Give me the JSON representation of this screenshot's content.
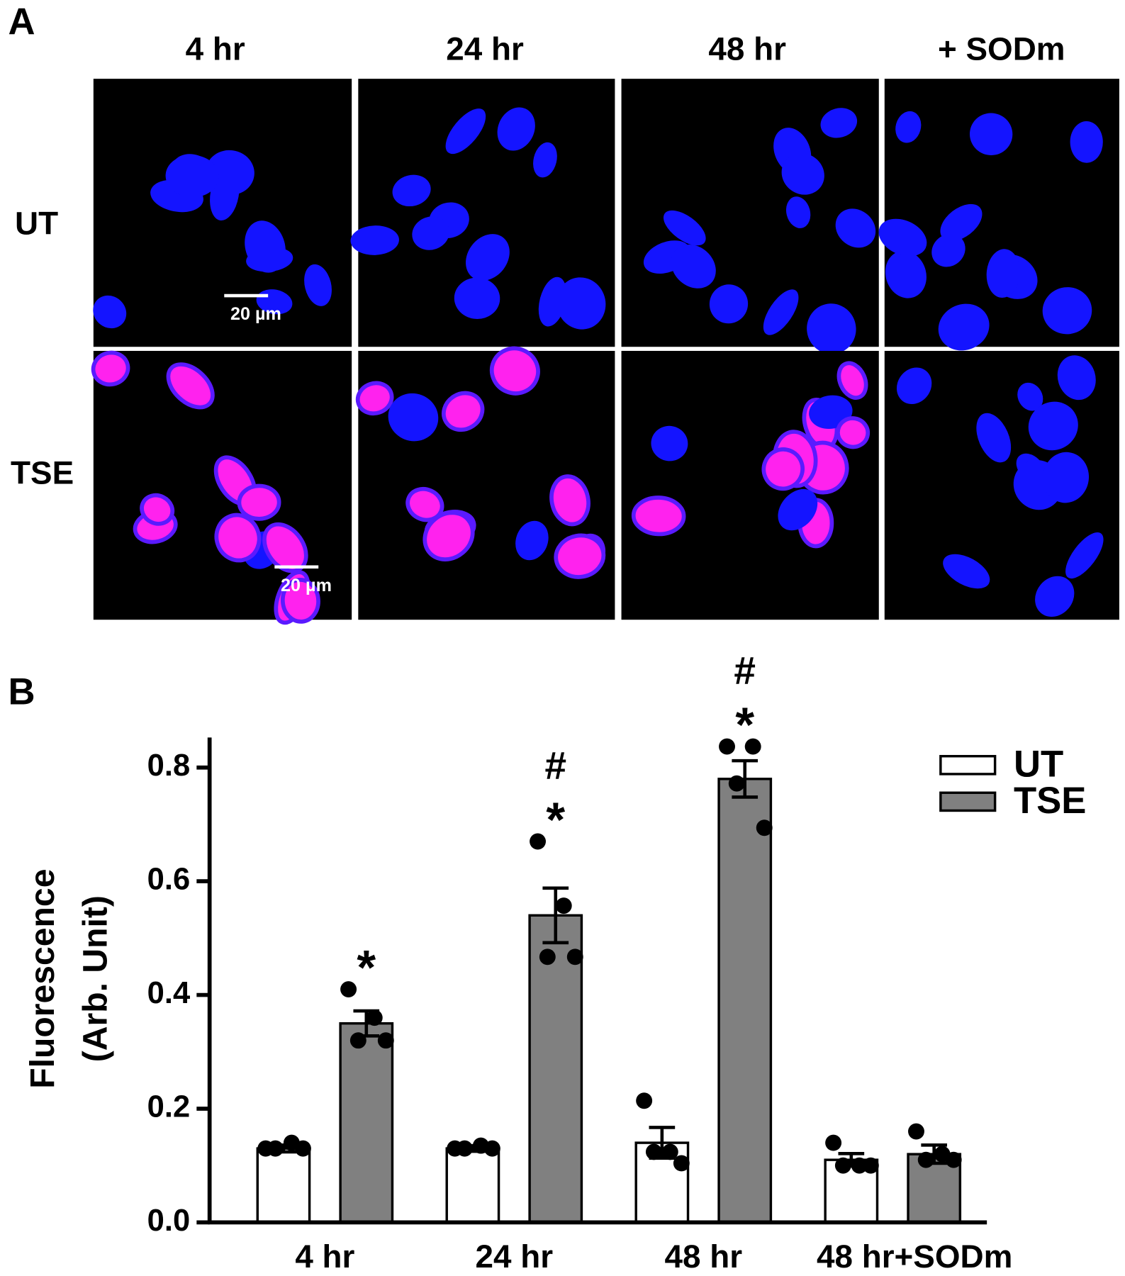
{
  "panel_a": {
    "label": "A",
    "columns": [
      "4 hr",
      "24 hr",
      "48 hr",
      "+ SODm"
    ],
    "rows": [
      "UT",
      "TSE"
    ],
    "scale_bar": "20 µm"
  },
  "chart_data": {
    "type": "bar",
    "panel_label": "B",
    "y_label": [
      "Fluorescence",
      "(Arb. Unit)"
    ],
    "categories": [
      "4 hr",
      "24 hr",
      "48 hr",
      "48 hr+SODm"
    ],
    "series": [
      {
        "name": "UT",
        "color": "#ffffff",
        "values": [
          0.13,
          0.13,
          0.14,
          0.11
        ],
        "errors": [
          0.006,
          0.005,
          0.027,
          0.011
        ],
        "points": [
          [
            0.13,
            0.14,
            0.13,
            0.13
          ],
          [
            0.13,
            0.135,
            0.13,
            0.13
          ],
          [
            0.214,
            0.124,
            0.124,
            0.104
          ],
          [
            0.14,
            0.1,
            0.1,
            0.1
          ]
        ]
      },
      {
        "name": "TSE",
        "color": "#808080",
        "values": [
          0.35,
          0.54,
          0.78,
          0.12
        ],
        "errors": [
          0.022,
          0.048,
          0.032,
          0.016
        ],
        "points": [
          [
            0.41,
            0.36,
            0.32,
            0.32
          ],
          [
            0.67,
            0.557,
            0.467,
            0.467
          ],
          [
            0.837,
            0.837,
            0.772,
            0.694
          ],
          [
            0.16,
            0.12,
            0.11,
            0.11
          ]
        ],
        "star_labels": [
          "*",
          "*",
          "*",
          null
        ],
        "hash_labels": [
          null,
          "#",
          "#",
          null
        ]
      }
    ],
    "ylim": [
      0,
      0.85
    ],
    "yticks": [
      {
        "value": 0,
        "label": "0.0"
      },
      0.2,
      0.4,
      0.6,
      0.8
    ],
    "legend": "upper right"
  }
}
